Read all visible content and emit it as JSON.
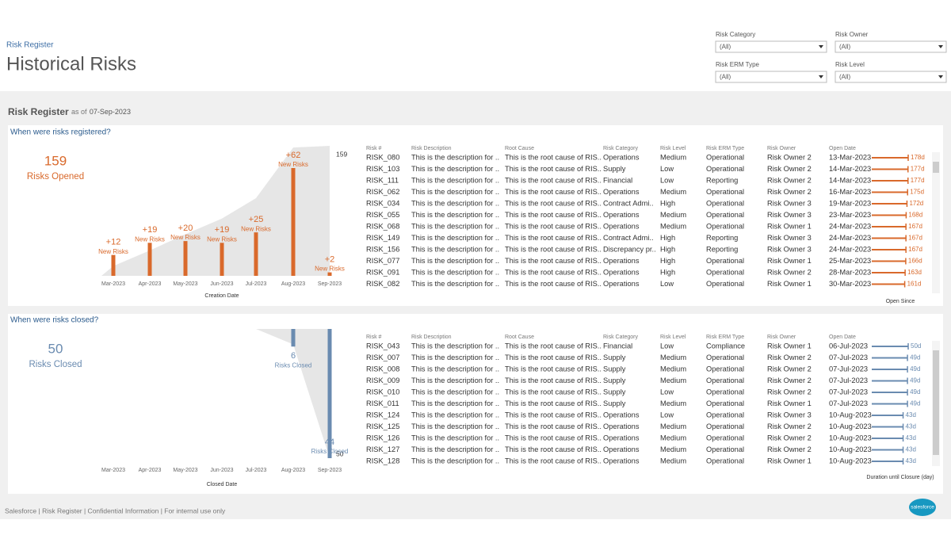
{
  "header": {
    "breadcrumb": "Risk Register",
    "title": "Historical Risks"
  },
  "filters": [
    {
      "label": "Risk Category",
      "value": "(All)"
    },
    {
      "label": "Risk Owner",
      "value": "(All)"
    },
    {
      "label": "Risk ERM Type",
      "value": "(All)"
    },
    {
      "label": "Risk Level",
      "value": "(All)"
    }
  ],
  "section": {
    "title": "Risk Register",
    "as_of_prefix": "as of",
    "as_of_date": "07-Sep-2023"
  },
  "opened": {
    "heading": "When were risks registered?",
    "kpi_value": 159,
    "kpi_label": "Risks Opened",
    "chart": {
      "type": "bar",
      "categories": [
        "Mar-2023",
        "Apr-2023",
        "May-2023",
        "Jun-2023",
        "Jul-2023",
        "Aug-2023",
        "Sep-2023"
      ],
      "values": [
        12,
        19,
        20,
        19,
        25,
        62,
        2
      ],
      "value_labels": [
        "+12",
        "+19",
        "+20",
        "+19",
        "+25",
        "+62",
        "+2"
      ],
      "mark_label": "New Risks",
      "x_label": "Creation Date",
      "color": "#d9692b"
    },
    "table": {
      "columns": [
        "Risk #",
        "Risk Description",
        "Root Cause",
        "Risk Category",
        "Risk Level",
        "Risk ERM Type",
        "Risk Owner",
        "Open Date"
      ],
      "rows": [
        [
          "RISK_080",
          "This is the description for ..",
          "This is the root cause of RIS..",
          "Operations",
          "Medium",
          "Operational",
          "Risk Owner 2",
          "13-Mar-2023"
        ],
        [
          "RISK_103",
          "This is the description for ..",
          "This is the root cause of RIS..",
          "Supply",
          "Low",
          "Operational",
          "Risk Owner 2",
          "14-Mar-2023"
        ],
        [
          "RISK_111",
          "This is the description for ..",
          "This is the root cause of RIS..",
          "Financial",
          "Low",
          "Reporting",
          "Risk Owner 2",
          "14-Mar-2023"
        ],
        [
          "RISK_062",
          "This is the description for ..",
          "This is the root cause of RIS..",
          "Operations",
          "Medium",
          "Operational",
          "Risk Owner 2",
          "16-Mar-2023"
        ],
        [
          "RISK_034",
          "This is the description for ..",
          "This is the root cause of RIS..",
          "Contract Admi..",
          "High",
          "Operational",
          "Risk Owner 3",
          "19-Mar-2023"
        ],
        [
          "RISK_055",
          "This is the description for ..",
          "This is the root cause of RIS..",
          "Operations",
          "Medium",
          "Operational",
          "Risk Owner 3",
          "23-Mar-2023"
        ],
        [
          "RISK_068",
          "This is the description for ..",
          "This is the root cause of RIS..",
          "Operations",
          "Medium",
          "Operational",
          "Risk Owner 1",
          "24-Mar-2023"
        ],
        [
          "RISK_149",
          "This is the description for ..",
          "This is the root cause of RIS..",
          "Contract Admi..",
          "High",
          "Reporting",
          "Risk Owner 3",
          "24-Mar-2023"
        ],
        [
          "RISK_156",
          "This is the description for ..",
          "This is the root cause of RIS..",
          "Discrepancy pr..",
          "High",
          "Reporting",
          "Risk Owner 3",
          "24-Mar-2023"
        ],
        [
          "RISK_077",
          "This is the description for ..",
          "This is the root cause of RIS..",
          "Operations",
          "High",
          "Operational",
          "Risk Owner 1",
          "25-Mar-2023"
        ],
        [
          "RISK_091",
          "This is the description for ..",
          "This is the root cause of RIS..",
          "Operations",
          "High",
          "Operational",
          "Risk Owner 2",
          "28-Mar-2023"
        ],
        [
          "RISK_082",
          "This is the description for ..",
          "This is the root cause of RIS..",
          "Operations",
          "Low",
          "Operational",
          "Risk Owner 1",
          "30-Mar-2023"
        ]
      ],
      "days": [
        178,
        177,
        177,
        175,
        172,
        168,
        167,
        167,
        167,
        166,
        163,
        161
      ],
      "day_labels": [
        "178d",
        "177d",
        "177d",
        "175d",
        "172d",
        "168d",
        "167d",
        "167d",
        "167d",
        "166d",
        "163d",
        "161d"
      ],
      "bar_axis_label": "Open Since"
    }
  },
  "closed": {
    "heading": "When were risks closed?",
    "kpi_value": 50,
    "kpi_label": "Risks Closed",
    "chart": {
      "type": "bar",
      "categories": [
        "Mar-2023",
        "Apr-2023",
        "May-2023",
        "Jun-2023",
        "Jul-2023",
        "Aug-2023",
        "Sep-2023"
      ],
      "values": [
        0,
        0,
        0,
        0,
        0,
        6,
        44
      ],
      "mark_label": "Risks Closed",
      "x_label": "Closed Date",
      "color": "#6a8bb0"
    },
    "table": {
      "columns": [
        "Risk #",
        "Risk Description",
        "Root Cause",
        "Risk Category",
        "Risk Level",
        "Risk ERM Type",
        "Risk Owner",
        "Open Date"
      ],
      "rows": [
        [
          "RISK_043",
          "This is the description for ..",
          "This is the root cause of RIS..",
          "Financial",
          "Low",
          "Compliance",
          "Risk Owner 1",
          "06-Jul-2023"
        ],
        [
          "RISK_007",
          "This is the description for ..",
          "This is the root cause of RIS..",
          "Supply",
          "Medium",
          "Operational",
          "Risk Owner 2",
          "07-Jul-2023"
        ],
        [
          "RISK_008",
          "This is the description for ..",
          "This is the root cause of RIS..",
          "Supply",
          "Medium",
          "Operational",
          "Risk Owner 2",
          "07-Jul-2023"
        ],
        [
          "RISK_009",
          "This is the description for ..",
          "This is the root cause of RIS..",
          "Supply",
          "Medium",
          "Operational",
          "Risk Owner 2",
          "07-Jul-2023"
        ],
        [
          "RISK_010",
          "This is the description for ..",
          "This is the root cause of RIS..",
          "Supply",
          "Low",
          "Operational",
          "Risk Owner 2",
          "07-Jul-2023"
        ],
        [
          "RISK_011",
          "This is the description for ..",
          "This is the root cause of RIS..",
          "Supply",
          "Medium",
          "Operational",
          "Risk Owner 1",
          "07-Jul-2023"
        ],
        [
          "RISK_124",
          "This is the description for ..",
          "This is the root cause of RIS..",
          "Operations",
          "Low",
          "Operational",
          "Risk Owner 3",
          "10-Aug-2023"
        ],
        [
          "RISK_125",
          "This is the description for ..",
          "This is the root cause of RIS..",
          "Operations",
          "Medium",
          "Operational",
          "Risk Owner 2",
          "10-Aug-2023"
        ],
        [
          "RISK_126",
          "This is the description for ..",
          "This is the root cause of RIS..",
          "Operations",
          "Medium",
          "Operational",
          "Risk Owner 2",
          "10-Aug-2023"
        ],
        [
          "RISK_127",
          "This is the description for ..",
          "This is the root cause of RIS..",
          "Operations",
          "Medium",
          "Operational",
          "Risk Owner 2",
          "10-Aug-2023"
        ],
        [
          "RISK_128",
          "This is the description for ..",
          "This is the root cause of RIS..",
          "Operations",
          "Medium",
          "Operational",
          "Risk Owner 1",
          "10-Aug-2023"
        ]
      ],
      "days": [
        50,
        49,
        49,
        49,
        49,
        49,
        43,
        43,
        43,
        43,
        43
      ],
      "day_labels": [
        "50d",
        "49d",
        "49d",
        "49d",
        "49d",
        "49d",
        "43d",
        "43d",
        "43d",
        "43d",
        "43d"
      ],
      "bar_axis_label": "Duration until Closure (day)"
    }
  },
  "footer": {
    "text": "Salesforce | Risk Register | Confidential Information | For internal use only",
    "logo": "salesforce"
  }
}
